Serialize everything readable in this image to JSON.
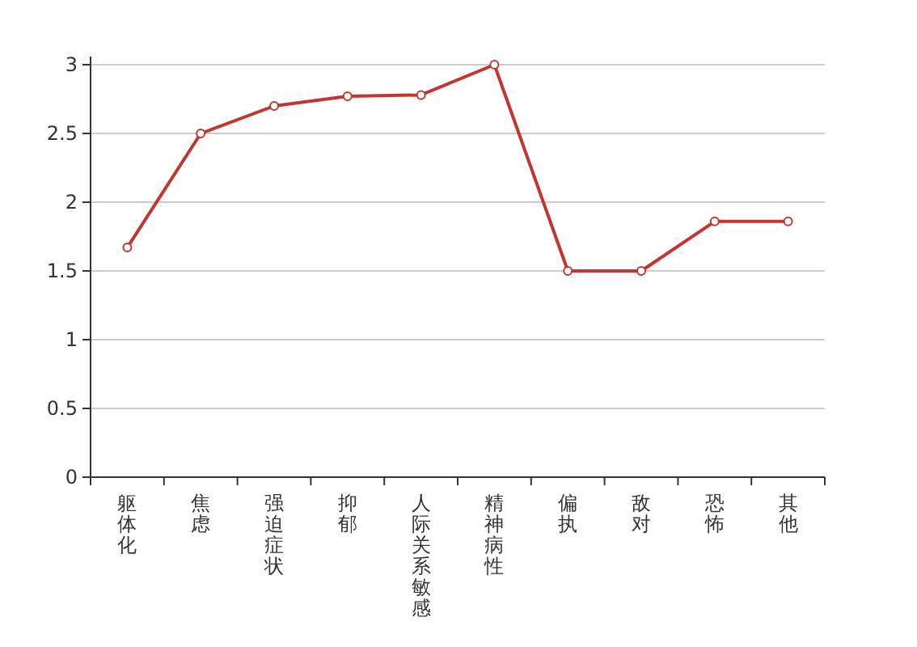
{
  "chart_data": {
    "type": "line",
    "categories": [
      "躯体化",
      "焦虑",
      "强迫症状",
      "抑郁",
      "人际关系敏感",
      "精神病性",
      "偏执",
      "敌对",
      "恐怖",
      "其他"
    ],
    "series": [
      {
        "color": "#c23531",
        "values": [
          1.67,
          2.5,
          2.7,
          2.77,
          2.78,
          3.0,
          1.5,
          1.5,
          1.86,
          1.86
        ]
      }
    ],
    "ylim": [
      0,
      3
    ],
    "yticks": [
      0,
      0.5,
      1,
      1.5,
      2,
      2.5,
      3
    ],
    "grid": "y",
    "marker": "circle",
    "line_style": "solid"
  }
}
